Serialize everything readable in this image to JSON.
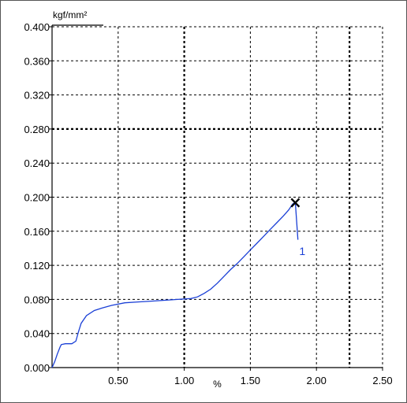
{
  "chart_data": {
    "type": "line",
    "title": "",
    "ylabel": "kgf/mm²",
    "xlabel": "%",
    "xlim": [
      0,
      2.5
    ],
    "ylim": [
      0,
      0.4
    ],
    "x_ticks": [
      "0.50",
      "1.00",
      "1.50",
      "2.00",
      "2.50"
    ],
    "x_tick_values": [
      0.5,
      1.0,
      1.5,
      2.0,
      2.5
    ],
    "y_ticks": [
      "0.000",
      "0.040",
      "0.080",
      "0.120",
      "0.160",
      "0.200",
      "0.240",
      "0.280",
      "0.320",
      "0.360",
      "0.400"
    ],
    "y_tick_values": [
      0,
      0.04,
      0.08,
      0.12,
      0.16,
      0.2,
      0.24,
      0.28,
      0.32,
      0.36,
      0.4
    ],
    "grid": true,
    "bold_grid_x": [
      1.0,
      2.25
    ],
    "bold_grid_y": [
      0.28
    ],
    "series": [
      {
        "color": "#1a3fd6",
        "points": [
          [
            0.0,
            0.0
          ],
          [
            0.02,
            0.007
          ],
          [
            0.04,
            0.016
          ],
          [
            0.06,
            0.024
          ],
          [
            0.07,
            0.027
          ],
          [
            0.1,
            0.028
          ],
          [
            0.15,
            0.028
          ],
          [
            0.18,
            0.031
          ],
          [
            0.2,
            0.042
          ],
          [
            0.22,
            0.052
          ],
          [
            0.26,
            0.061
          ],
          [
            0.32,
            0.067
          ],
          [
            0.38,
            0.07
          ],
          [
            0.45,
            0.073
          ],
          [
            0.55,
            0.076
          ],
          [
            0.65,
            0.077
          ],
          [
            0.75,
            0.078
          ],
          [
            0.85,
            0.079
          ],
          [
            0.95,
            0.08
          ],
          [
            1.05,
            0.081
          ],
          [
            1.1,
            0.083
          ],
          [
            1.15,
            0.087
          ],
          [
            1.2,
            0.092
          ],
          [
            1.25,
            0.099
          ],
          [
            1.3,
            0.107
          ],
          [
            1.35,
            0.115
          ],
          [
            1.4,
            0.122
          ],
          [
            1.45,
            0.13
          ],
          [
            1.5,
            0.138
          ],
          [
            1.55,
            0.146
          ],
          [
            1.6,
            0.154
          ],
          [
            1.65,
            0.162
          ],
          [
            1.7,
            0.17
          ],
          [
            1.75,
            0.178
          ],
          [
            1.79,
            0.185
          ],
          [
            1.82,
            0.192
          ],
          [
            1.84,
            0.194
          ],
          [
            1.86,
            0.15
          ]
        ]
      }
    ],
    "annotations": [
      {
        "text": "1",
        "x": 1.87,
        "y": 0.132,
        "color": "#1a3fd6"
      }
    ],
    "markers": [
      {
        "symbol": "×",
        "x": 1.84,
        "y": 0.194
      }
    ]
  }
}
